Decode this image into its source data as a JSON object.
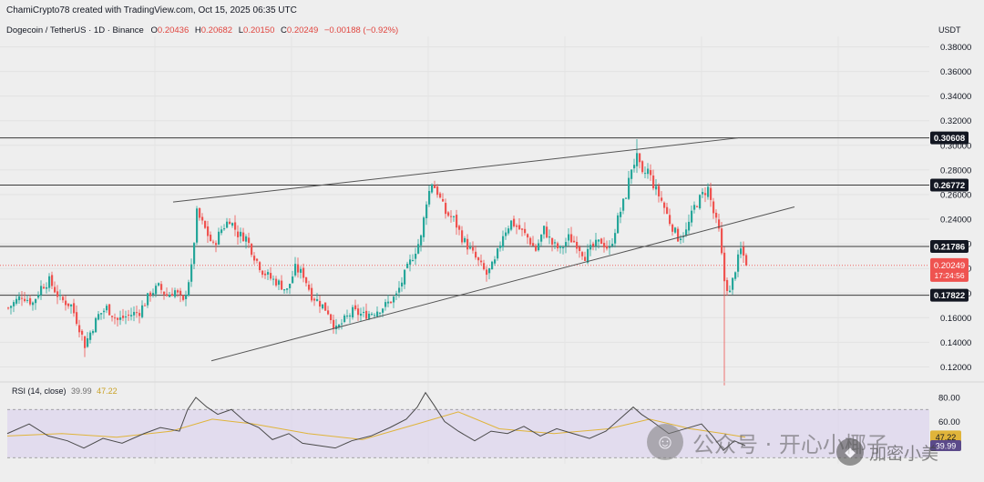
{
  "header": {
    "credit": "ChamiCrypto78 created with TradingView.com, Oct 15, 2025 06:35 UTC",
    "symbol": "Dogecoin / TetherUS · 1D · Binance",
    "ohlc": {
      "o_label": "O",
      "o": "0.20436",
      "h_label": "H",
      "h": "0.20682",
      "l_label": "L",
      "l": "0.20150",
      "c_label": "C",
      "c": "0.20249",
      "change": "−0.00188 (−0.92%)"
    }
  },
  "currency": "USDT",
  "rsi_header": {
    "label": "RSI (14, close)",
    "rsi": "39.99",
    "ma": "47.22"
  },
  "watermark": {
    "text": "公众号 · 开心小椰子",
    "sub_text": "加密小美",
    "logo_icon": "wechat-icon",
    "sub_logo_icon": "binance-icon"
  },
  "colors": {
    "up": "#26a69a",
    "down": "#ef5350",
    "line": "#555555",
    "rsi": "#4a4a4a",
    "rsi_ma": "#e0b43a",
    "rsi_band": "#ddd6ee"
  },
  "chart_data": [
    {
      "type": "candlestick",
      "title": "Dogecoin / TetherUS · 1D · Binance",
      "ylim": [
        0.1,
        0.39
      ],
      "y_ticks": [
        0.12,
        0.14,
        0.16,
        0.18,
        0.2,
        0.22,
        0.24,
        0.26,
        0.28,
        0.3,
        0.32,
        0.34,
        0.36,
        0.38
      ],
      "grid": true,
      "levels": [
        {
          "value": 0.30608,
          "label": "0.30608"
        },
        {
          "value": 0.26772,
          "label": "0.26772"
        },
        {
          "value": 0.21786,
          "label": "0.21786"
        },
        {
          "value": 0.17822,
          "label": "0.17822"
        }
      ],
      "last_price": {
        "value": 0.20249,
        "label": "0.20249",
        "countdown": "17:24:56"
      },
      "close_path": [
        [
          0,
          0.168
        ],
        [
          5,
          0.178
        ],
        [
          9,
          0.172
        ],
        [
          12,
          0.185
        ],
        [
          15,
          0.19
        ],
        [
          19,
          0.175
        ],
        [
          23,
          0.17
        ],
        [
          26,
          0.152
        ],
        [
          28,
          0.138
        ],
        [
          30,
          0.148
        ],
        [
          33,
          0.162
        ],
        [
          36,
          0.168
        ],
        [
          40,
          0.158
        ],
        [
          44,
          0.162
        ],
        [
          48,
          0.165
        ],
        [
          52,
          0.18
        ],
        [
          55,
          0.185
        ],
        [
          58,
          0.178
        ],
        [
          61,
          0.182
        ],
        [
          64,
          0.172
        ],
        [
          67,
          0.2
        ],
        [
          69,
          0.245
        ],
        [
          72,
          0.232
        ],
        [
          75,
          0.218
        ],
        [
          78,
          0.232
        ],
        [
          81,
          0.24
        ],
        [
          84,
          0.228
        ],
        [
          87,
          0.225
        ],
        [
          90,
          0.21
        ],
        [
          93,
          0.198
        ],
        [
          96,
          0.192
        ],
        [
          99,
          0.188
        ],
        [
          102,
          0.182
        ],
        [
          105,
          0.2
        ],
        [
          108,
          0.195
        ],
        [
          111,
          0.178
        ],
        [
          114,
          0.172
        ],
        [
          117,
          0.165
        ],
        [
          120,
          0.15
        ],
        [
          123,
          0.158
        ],
        [
          126,
          0.165
        ],
        [
          130,
          0.162
        ],
        [
          134,
          0.165
        ],
        [
          138,
          0.17
        ],
        [
          142,
          0.178
        ],
        [
          145,
          0.195
        ],
        [
          148,
          0.21
        ],
        [
          151,
          0.225
        ],
        [
          153,
          0.255
        ],
        [
          155,
          0.27
        ],
        [
          157,
          0.262
        ],
        [
          160,
          0.245
        ],
        [
          163,
          0.24
        ],
        [
          166,
          0.225
        ],
        [
          169,
          0.215
        ],
        [
          172,
          0.205
        ],
        [
          175,
          0.195
        ],
        [
          178,
          0.205
        ],
        [
          181,
          0.228
        ],
        [
          184,
          0.238
        ],
        [
          187,
          0.232
        ],
        [
          190,
          0.225
        ],
        [
          193,
          0.215
        ],
        [
          196,
          0.232
        ],
        [
          199,
          0.22
        ],
        [
          202,
          0.215
        ],
        [
          205,
          0.225
        ],
        [
          208,
          0.22
        ],
        [
          211,
          0.21
        ],
        [
          214,
          0.218
        ],
        [
          217,
          0.222
        ],
        [
          220,
          0.215
        ],
        [
          223,
          0.24
        ],
        [
          226,
          0.26
        ],
        [
          228,
          0.282
        ],
        [
          230,
          0.29
        ],
        [
          232,
          0.275
        ],
        [
          234,
          0.28
        ],
        [
          236,
          0.268
        ],
        [
          239,
          0.255
        ],
        [
          242,
          0.238
        ],
        [
          245,
          0.225
        ],
        [
          248,
          0.23
        ],
        [
          251,
          0.25
        ],
        [
          254,
          0.26
        ],
        [
          256,
          0.265
        ],
        [
          258,
          0.245
        ],
        [
          260,
          0.23
        ],
        [
          262,
          0.19
        ],
        [
          264,
          0.18
        ],
        [
          266,
          0.2
        ],
        [
          268,
          0.215
        ],
        [
          270,
          0.205
        ]
      ]
    },
    {
      "type": "line",
      "title": "RSI (14, close)",
      "ylim": [
        20,
        90
      ],
      "y_ticks": [
        60,
        80
      ],
      "band": [
        30,
        70
      ],
      "series": [
        {
          "name": "RSI",
          "x": [
            0,
            8,
            15,
            22,
            28,
            35,
            42,
            50,
            56,
            63,
            66,
            69,
            73,
            77,
            82,
            87,
            92,
            97,
            103,
            108,
            114,
            120,
            126,
            133,
            140,
            146,
            150,
            153,
            156,
            160,
            165,
            171,
            177,
            183,
            189,
            195,
            201,
            207,
            213,
            219,
            225,
            229,
            232,
            236,
            242,
            248,
            254,
            258,
            262,
            266,
            270
          ],
          "values": [
            50,
            58,
            48,
            44,
            38,
            46,
            42,
            50,
            55,
            52,
            70,
            80,
            72,
            66,
            70,
            60,
            55,
            45,
            50,
            42,
            40,
            38,
            44,
            48,
            55,
            62,
            72,
            84,
            74,
            60,
            52,
            44,
            52,
            50,
            56,
            48,
            54,
            50,
            46,
            52,
            64,
            72,
            66,
            60,
            50,
            54,
            58,
            48,
            36,
            44,
            40
          ]
        },
        {
          "name": "RSI-based MA",
          "x": [
            0,
            20,
            40,
            60,
            75,
            90,
            110,
            130,
            150,
            165,
            180,
            200,
            220,
            235,
            250,
            262,
            270
          ],
          "values": [
            48,
            50,
            47,
            52,
            62,
            58,
            50,
            45,
            58,
            68,
            54,
            50,
            54,
            62,
            54,
            50,
            47
          ]
        }
      ]
    }
  ]
}
